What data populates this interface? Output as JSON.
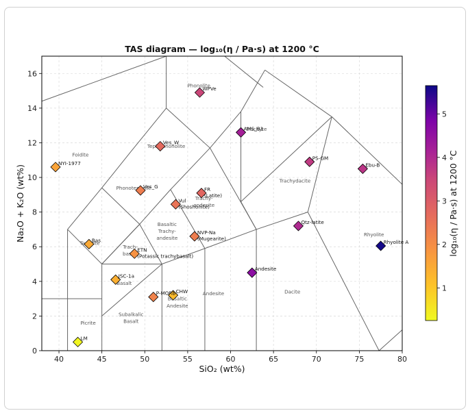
{
  "chart_data": {
    "type": "scatter",
    "title": "TAS diagram — log₁₀(η / Pa·s) at 1200 °C",
    "xlabel": "SiO₂ (wt%)",
    "ylabel": "Na₂O + K₂O (wt%)",
    "xlim": [
      38,
      80
    ],
    "ylim": [
      0,
      17
    ],
    "xticks": [
      40,
      45,
      50,
      55,
      60,
      65,
      70,
      75,
      80
    ],
    "yticks": [
      0,
      2,
      4,
      6,
      8,
      10,
      12,
      14,
      16
    ],
    "grid": true,
    "marker": "diamond",
    "colormap": "plasma",
    "colorbar": {
      "label": "log₁₀(η / Pa·s) at 1200 °C",
      "min": 0.25,
      "max": 5.65,
      "ticks": [
        1,
        2,
        3,
        4,
        5
      ]
    },
    "fields": [
      {
        "name": "Foidite",
        "x": 42.5,
        "y": 11.2
      },
      {
        "name": "Phonolite",
        "x": 56.3,
        "y": 15.2
      },
      {
        "name": "Tephriphonolite",
        "x": 52.5,
        "y": 11.7
      },
      {
        "name": "Phonotephrite",
        "x": 48.7,
        "y": 9.3
      },
      {
        "name": "Trachyte",
        "x": 63.0,
        "y": 12.7
      },
      {
        "name": "Trachydacite",
        "x": 67.5,
        "y": 9.7
      },
      {
        "name": "Trachy-",
        "x": 56.9,
        "y": 8.7
      },
      {
        "name": "andesite",
        "x": 56.9,
        "y": 8.3
      },
      {
        "name": "Basaltic",
        "x": 52.6,
        "y": 7.2
      },
      {
        "name": "Trachy-",
        "x": 52.6,
        "y": 6.8
      },
      {
        "name": "andesite",
        "x": 52.6,
        "y": 6.4
      },
      {
        "name": "Trach-",
        "x": 48.3,
        "y": 5.9
      },
      {
        "name": "basalt",
        "x": 48.3,
        "y": 5.5
      },
      {
        "name": "Tephrite",
        "x": 43.6,
        "y": 6.1
      },
      {
        "name": "Basalt",
        "x": 47.6,
        "y": 3.8
      },
      {
        "name": "Basaltic",
        "x": 53.8,
        "y": 2.9
      },
      {
        "name": "Andesite",
        "x": 53.8,
        "y": 2.5
      },
      {
        "name": "Andesite",
        "x": 58.0,
        "y": 3.2
      },
      {
        "name": "Dacite",
        "x": 67.2,
        "y": 3.3
      },
      {
        "name": "Rhyolite",
        "x": 76.7,
        "y": 6.6
      },
      {
        "name": "Picrite",
        "x": 43.4,
        "y": 1.5
      },
      {
        "name": "Subalkalic",
        "x": 48.4,
        "y": 2.0
      },
      {
        "name": "Basalt",
        "x": 48.4,
        "y": 1.6
      }
    ],
    "points": [
      {
        "label": "NYI-1977",
        "x": 39.6,
        "y": 10.6,
        "value": 1.6
      },
      {
        "label": "WPVe",
        "x": 56.4,
        "y": 14.9,
        "value": 3.5
      },
      {
        "label": "AMS_B1",
        "x": 61.2,
        "y": 12.6,
        "value": 4.2
      },
      {
        "label": "Ves_W",
        "x": 51.8,
        "y": 11.8,
        "value": 2.7
      },
      {
        "label": "PS-GM",
        "x": 69.2,
        "y": 10.9,
        "value": 3.7
      },
      {
        "label": "Ebu-B",
        "x": 75.4,
        "y": 10.5,
        "value": 3.8
      },
      {
        "label": "Ves_G",
        "x": 49.5,
        "y": 9.25,
        "value": 2.3
      },
      {
        "label": "FR\n(Latite)",
        "x": 56.6,
        "y": 9.1,
        "value": 2.8
      },
      {
        "label": "Vul\n(Shoshonite)",
        "x": 53.6,
        "y": 8.45,
        "value": 2.5
      },
      {
        "label": "Qtz-latite",
        "x": 67.9,
        "y": 7.2,
        "value": 4.0
      },
      {
        "label": "NVP-Na\n(Mugearite)",
        "x": 55.8,
        "y": 6.6,
        "value": 2.3
      },
      {
        "label": "Rhyolite A",
        "x": 77.5,
        "y": 6.05,
        "value": 5.6
      },
      {
        "label": "Bas",
        "x": 43.5,
        "y": 6.15,
        "value": 1.5
      },
      {
        "label": "ETN\n(Potassic trachybasalt)",
        "x": 48.8,
        "y": 5.6,
        "value": 1.9
      },
      {
        "label": "Andesite",
        "x": 62.5,
        "y": 4.5,
        "value": 4.6
      },
      {
        "label": "JSC-1a",
        "x": 46.6,
        "y": 4.1,
        "value": 1.4
      },
      {
        "label": "P-MORB",
        "x": 51.0,
        "y": 3.1,
        "value": 2.2
      },
      {
        "label": "CHW",
        "x": 53.3,
        "y": 3.2,
        "value": 1.2
      },
      {
        "label": "LM",
        "x": 42.2,
        "y": 0.5,
        "value": 0.3
      }
    ]
  }
}
